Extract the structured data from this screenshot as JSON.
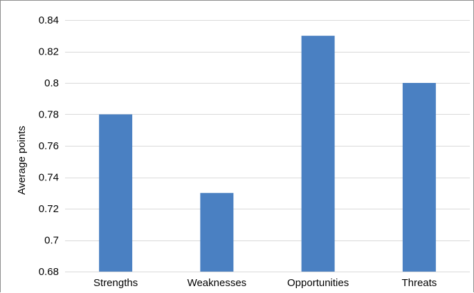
{
  "chart_data": {
    "type": "bar",
    "title": "",
    "xlabel": "",
    "ylabel": "Average points",
    "categories": [
      "Strengths",
      "Weaknesses",
      "Opportunities",
      "Threats"
    ],
    "values": [
      0.78,
      0.73,
      0.83,
      0.8
    ],
    "ylim": [
      0.68,
      0.84
    ],
    "yticks": [
      0.68,
      0.7,
      0.72,
      0.74,
      0.76,
      0.78,
      0.8,
      0.82,
      0.84
    ],
    "ytick_labels": [
      "0.68",
      "0.7",
      "0.72",
      "0.74",
      "0.76",
      "0.78",
      "0.8",
      "0.82",
      "0.84"
    ],
    "grid": true,
    "legend": false,
    "bar_color": "#4a80c2",
    "grid_color": "#d9d9d9"
  }
}
